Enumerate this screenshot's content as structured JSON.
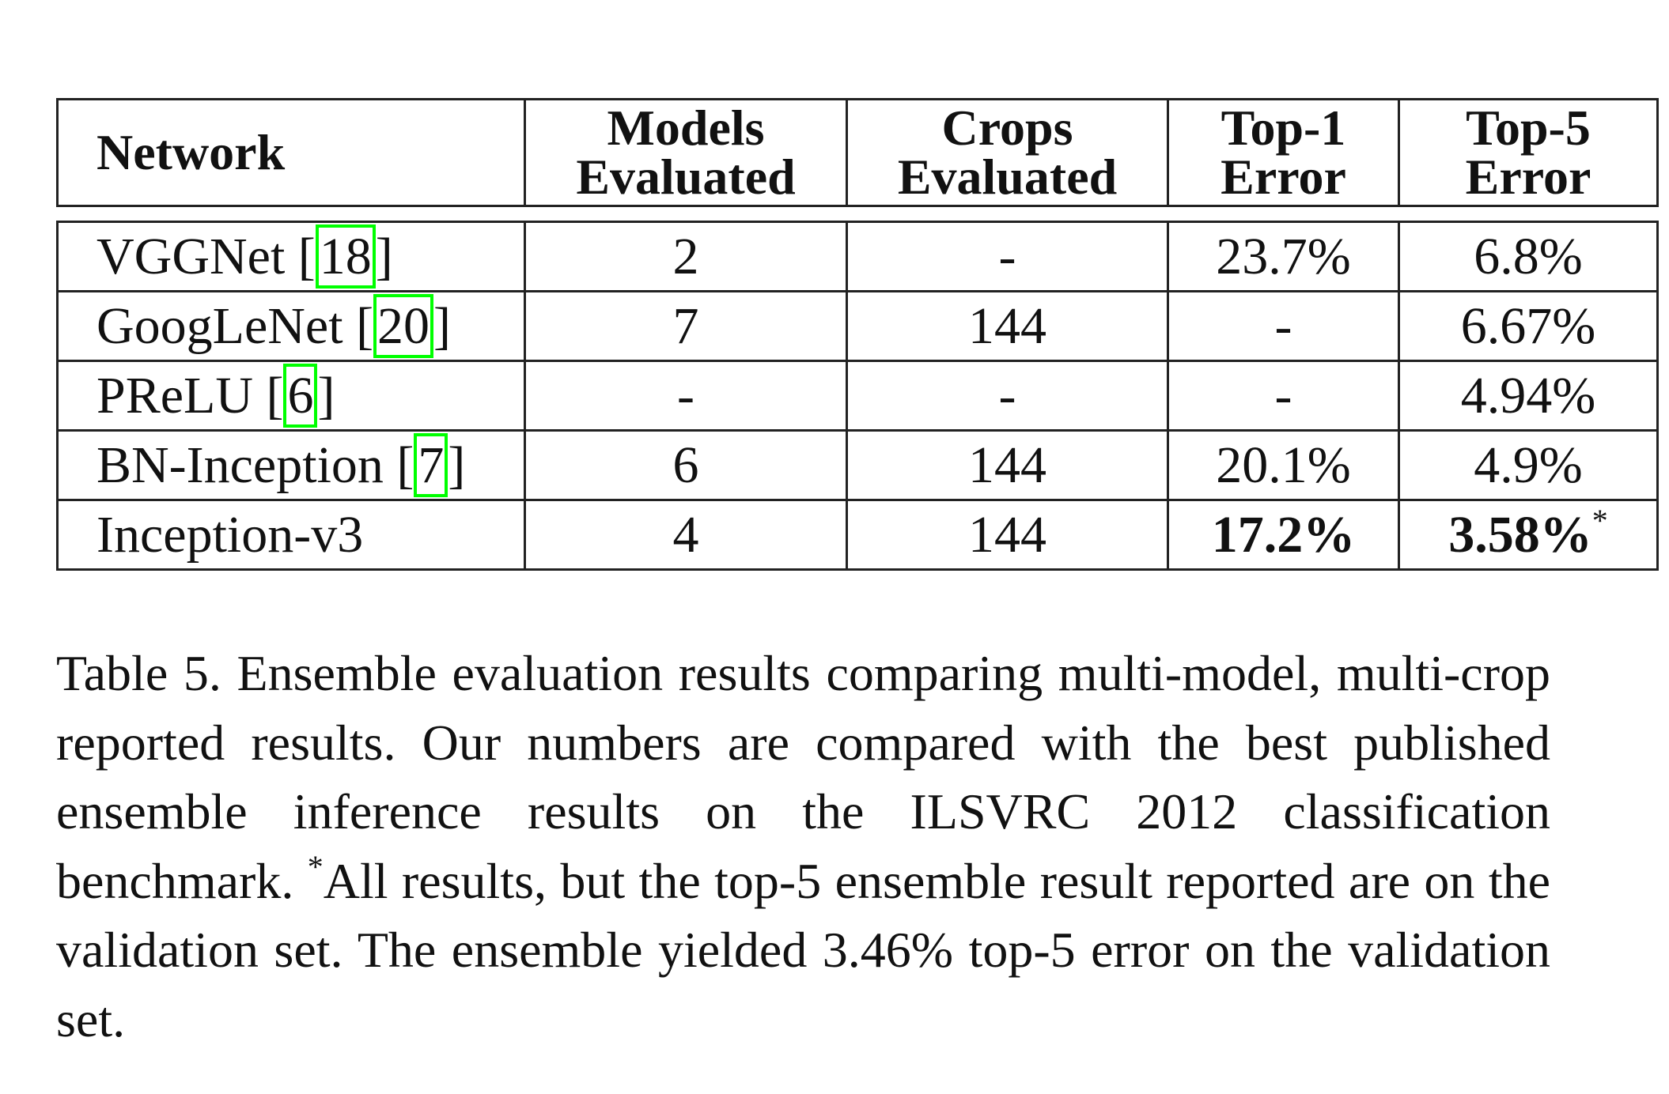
{
  "table": {
    "header": [
      [
        "Network"
      ],
      [
        "Models",
        "Evaluated"
      ],
      [
        "Crops",
        "Evaluated"
      ],
      [
        "Top-1",
        "Error"
      ],
      [
        "Top-5",
        "Error"
      ]
    ],
    "rows": [
      {
        "network": [
          "VGGNet [",
          "18",
          "]"
        ],
        "models": "2",
        "crops": "-",
        "top1": "23.7%",
        "top5": "6.8%"
      },
      {
        "network": [
          "GoogLeNet [",
          "20",
          "]"
        ],
        "models": "7",
        "crops": "144",
        "top1": "-",
        "top5": "6.67%"
      },
      {
        "network": [
          "PReLU [",
          "6",
          "]"
        ],
        "models": "-",
        "crops": "-",
        "top1": "-",
        "top5": "4.94%"
      },
      {
        "network": [
          "BN-Inception [",
          "7",
          "]"
        ],
        "models": "6",
        "crops": "144",
        "top1": "20.1%",
        "top5": "4.9%"
      },
      {
        "network": [
          "Inception-v3"
        ],
        "models": "4",
        "crops": "144",
        "top1": "17.2%",
        "top5": "3.58%",
        "bold": true,
        "note": "*"
      }
    ]
  },
  "caption": [
    "Table 5. Ensemble evaluation results comparing multi-model, multi-crop reported results.  Our numbers are compared with the best published ensemble inference results on the ILSVRC 2012 classification benchmark.  ",
    "*",
    "All results, but the top-5 ensemble result reported are on the validation set.  The ensemble yielded 3.46% top-5 error on the validation set."
  ]
}
